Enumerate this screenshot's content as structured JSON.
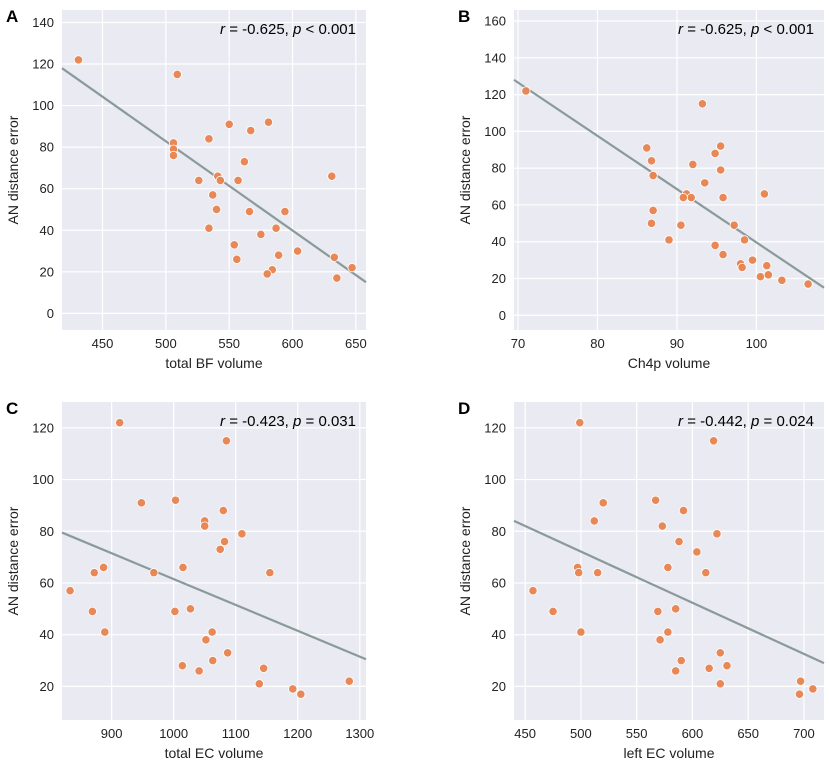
{
  "chart_data": [
    {
      "type": "scatter",
      "panel_label": "A",
      "xlabel": "total BF volume",
      "ylabel": "AN distance error",
      "xlim": [
        418,
        658
      ],
      "ylim": [
        -8,
        146
      ],
      "xticks": [
        450,
        500,
        550,
        600,
        650
      ],
      "yticks": [
        0,
        20,
        40,
        60,
        80,
        100,
        120,
        140
      ],
      "annotation": {
        "r_symbol": "r",
        "r_text": " = -0.625, ",
        "p_symbol": "p",
        "p_text": " < 0.001"
      },
      "fit_line": {
        "x": [
          418,
          658
        ],
        "y": [
          118,
          15
        ]
      },
      "marker_color": "#E8834E",
      "line_color": "#8A9A9A",
      "points": [
        [
          431,
          122
        ],
        [
          509,
          115
        ],
        [
          506,
          82
        ],
        [
          506,
          79
        ],
        [
          506,
          76
        ],
        [
          534,
          84
        ],
        [
          550,
          91
        ],
        [
          567,
          88
        ],
        [
          581,
          92
        ],
        [
          562,
          73
        ],
        [
          526,
          64
        ],
        [
          541,
          66
        ],
        [
          543,
          64
        ],
        [
          537,
          57
        ],
        [
          557,
          64
        ],
        [
          540,
          50
        ],
        [
          566,
          49
        ],
        [
          594,
          49
        ],
        [
          534,
          41
        ],
        [
          587,
          41
        ],
        [
          631,
          66
        ],
        [
          604,
          30
        ],
        [
          575,
          38
        ],
        [
          554,
          33
        ],
        [
          556,
          26
        ],
        [
          589,
          28
        ],
        [
          584,
          21
        ],
        [
          580,
          19
        ],
        [
          633,
          27
        ],
        [
          635,
          17
        ],
        [
          647,
          22
        ]
      ]
    },
    {
      "type": "scatter",
      "panel_label": "B",
      "xlabel": "Ch4p volume",
      "ylabel": "AN distance error",
      "xlim": [
        69.5,
        108.5
      ],
      "ylim": [
        -8,
        166
      ],
      "xticks": [
        70,
        80,
        90,
        100
      ],
      "yticks": [
        0,
        20,
        40,
        60,
        80,
        100,
        120,
        140,
        160
      ],
      "annotation": {
        "r_symbol": "r",
        "r_text": " = -0.625, ",
        "p_symbol": "p",
        "p_text": " < 0.001"
      },
      "fit_line": {
        "x": [
          69.5,
          108.5
        ],
        "y": [
          128,
          15
        ]
      },
      "marker_color": "#E8834E",
      "line_color": "#8A9A9A",
      "points": [
        [
          71,
          122
        ],
        [
          93.2,
          115
        ],
        [
          86.2,
          91
        ],
        [
          95.5,
          92
        ],
        [
          94.8,
          88
        ],
        [
          86.8,
          84
        ],
        [
          92,
          82
        ],
        [
          95.5,
          79
        ],
        [
          87,
          76
        ],
        [
          93.5,
          72
        ],
        [
          91.2,
          66
        ],
        [
          91.8,
          64
        ],
        [
          90.8,
          64
        ],
        [
          95.8,
          64
        ],
        [
          101,
          66
        ],
        [
          87,
          57
        ],
        [
          86.8,
          50
        ],
        [
          90.5,
          49
        ],
        [
          97.2,
          49
        ],
        [
          89,
          41
        ],
        [
          98.5,
          41
        ],
        [
          94.8,
          38
        ],
        [
          95.8,
          33
        ],
        [
          99.5,
          30
        ],
        [
          98,
          28
        ],
        [
          98.2,
          26
        ],
        [
          101.3,
          27
        ],
        [
          100.5,
          21
        ],
        [
          101.5,
          22
        ],
        [
          103.2,
          19
        ],
        [
          106.5,
          17
        ]
      ]
    },
    {
      "type": "scatter",
      "panel_label": "C",
      "xlabel": "total EC volume",
      "ylabel": "AN distance error",
      "xlim": [
        820,
        1310
      ],
      "ylim": [
        7,
        130
      ],
      "xticks": [
        900,
        1000,
        1100,
        1200,
        1300
      ],
      "yticks": [
        20,
        40,
        60,
        80,
        100,
        120
      ],
      "annotation": {
        "r_symbol": "r",
        "r_text": " = -0.423, ",
        "p_symbol": "p",
        "p_text": " = 0.031"
      },
      "fit_line": {
        "x": [
          820,
          1310
        ],
        "y": [
          79.5,
          30.5
        ]
      },
      "marker_color": "#E8834E",
      "line_color": "#8A9A9A",
      "points": [
        [
          913,
          122
        ],
        [
          1085,
          115
        ],
        [
          1003,
          92
        ],
        [
          948,
          91
        ],
        [
          1080,
          88
        ],
        [
          1050,
          84
        ],
        [
          1050,
          82
        ],
        [
          1110,
          79
        ],
        [
          1082,
          76
        ],
        [
          1075,
          73
        ],
        [
          1015,
          66
        ],
        [
          887,
          66
        ],
        [
          872,
          64
        ],
        [
          968,
          64
        ],
        [
          1155,
          64
        ],
        [
          833,
          57
        ],
        [
          1002,
          49
        ],
        [
          869,
          49
        ],
        [
          1027,
          50
        ],
        [
          889,
          41
        ],
        [
          1062,
          41
        ],
        [
          1052,
          38
        ],
        [
          1087,
          33
        ],
        [
          1014,
          28
        ],
        [
          1063,
          30
        ],
        [
          1145,
          27
        ],
        [
          1041,
          26
        ],
        [
          1138,
          21
        ],
        [
          1192,
          19
        ],
        [
          1205,
          17
        ],
        [
          1283,
          22
        ]
      ]
    },
    {
      "type": "scatter",
      "panel_label": "D",
      "xlabel": "left EC volume",
      "ylabel": "AN distance error",
      "xlim": [
        440,
        718
      ],
      "ylim": [
        7,
        130
      ],
      "xticks": [
        450,
        500,
        550,
        600,
        650,
        700
      ],
      "yticks": [
        20,
        40,
        60,
        80,
        100,
        120
      ],
      "annotation": {
        "r_symbol": "r",
        "r_text": " = -0.442, ",
        "p_symbol": "p",
        "p_text": " = 0.024"
      },
      "fit_line": {
        "x": [
          440,
          718
        ],
        "y": [
          84,
          29
        ]
      },
      "marker_color": "#E8834E",
      "line_color": "#8A9A9A",
      "points": [
        [
          499,
          122
        ],
        [
          619,
          115
        ],
        [
          567,
          92
        ],
        [
          520,
          91
        ],
        [
          592,
          88
        ],
        [
          512,
          84
        ],
        [
          573,
          82
        ],
        [
          622,
          79
        ],
        [
          588,
          76
        ],
        [
          604,
          72
        ],
        [
          497,
          66
        ],
        [
          578,
          66
        ],
        [
          498,
          64
        ],
        [
          515,
          64
        ],
        [
          612,
          64
        ],
        [
          457,
          57
        ],
        [
          569,
          49
        ],
        [
          475,
          49
        ],
        [
          585,
          50
        ],
        [
          500,
          41
        ],
        [
          578,
          41
        ],
        [
          571,
          38
        ],
        [
          625,
          33
        ],
        [
          590,
          30
        ],
        [
          631,
          28
        ],
        [
          615,
          27
        ],
        [
          585,
          26
        ],
        [
          625,
          21
        ],
        [
          697,
          22
        ],
        [
          696,
          17
        ],
        [
          708,
          19
        ]
      ]
    }
  ]
}
